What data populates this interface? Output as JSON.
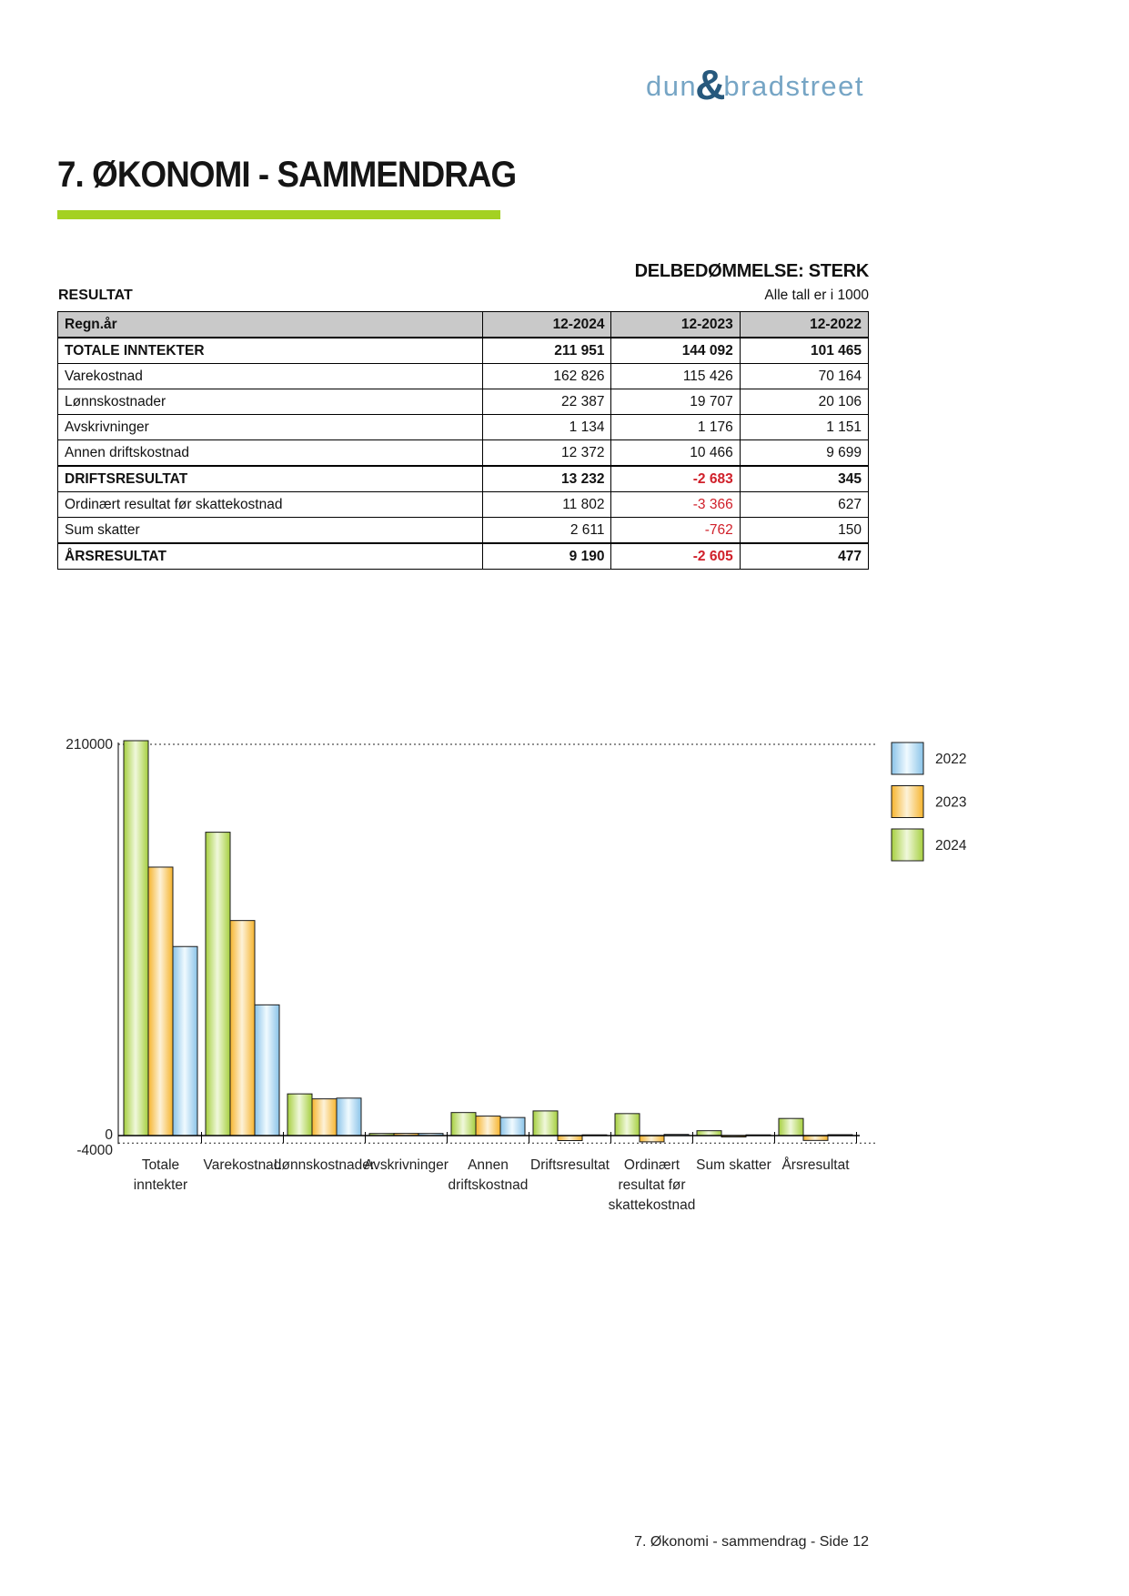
{
  "logo": {
    "word1": "dun",
    "ampersand": "&",
    "word2": "bradstreet"
  },
  "header": {
    "title": "7. ØKONOMI - SAMMENDRAG"
  },
  "assessment": {
    "label": "DELBEDØMMELSE: STERK"
  },
  "result_section": {
    "label": "RESULTAT",
    "units_note": "Alle tall er i 1000"
  },
  "table": {
    "columns": [
      "Regn.år",
      "12-2024",
      "12-2023",
      "12-2022"
    ],
    "rows": [
      {
        "label": "TOTALE INNTEKTER",
        "values": [
          "211 951",
          "144 092",
          "101 465"
        ],
        "emphasis": true
      },
      {
        "label": "Varekostnad",
        "values": [
          "162 826",
          "115 426",
          "70 164"
        ],
        "emphasis": false
      },
      {
        "label": "Lønnskostnader",
        "values": [
          "22 387",
          "19 707",
          "20 106"
        ],
        "emphasis": false
      },
      {
        "label": "Avskrivninger",
        "values": [
          "1 134",
          "1 176",
          "1 151"
        ],
        "emphasis": false
      },
      {
        "label": "Annen driftskostnad",
        "values": [
          "12 372",
          "10 466",
          "9 699"
        ],
        "emphasis": false
      },
      {
        "label": "DRIFTSRESULTAT",
        "values": [
          "13 232",
          "-2 683",
          "345"
        ],
        "emphasis": true
      },
      {
        "label": "Ordinært resultat før skattekostnad",
        "values": [
          "11 802",
          "-3 366",
          "627"
        ],
        "emphasis": false
      },
      {
        "label": "Sum skatter",
        "values": [
          "2 611",
          "-762",
          "150"
        ],
        "emphasis": false
      },
      {
        "label": "ÅRSRESULTAT",
        "values": [
          "9 190",
          "-2 605",
          "477"
        ],
        "emphasis": true
      }
    ]
  },
  "chart_data": {
    "type": "bar",
    "title": "",
    "xlabel": "",
    "ylabel": "",
    "categories": [
      "Totale inntekter",
      "Varekostnad",
      "Lønnskostnader",
      "Avskrivninger",
      "Annen driftskostnad",
      "Driftsresultat",
      "Ordinært resultat før skattekostnad",
      "Sum skatter",
      "Årsresultat"
    ],
    "category_label_lines": [
      [
        "Totale",
        "inntekter"
      ],
      [
        "Varekostnad"
      ],
      [
        "Lønnskostnader"
      ],
      [
        "Avskrivninger"
      ],
      [
        "Annen",
        "driftskostnad"
      ],
      [
        "Driftsresultat"
      ],
      [
        "Ordinært",
        "resultat før",
        "skattekostnad"
      ],
      [
        "Sum skatter"
      ],
      [
        "Årsresultat"
      ]
    ],
    "series": [
      {
        "name": "2022",
        "values": [
          101465,
          70164,
          20106,
          1151,
          9699,
          345,
          627,
          150,
          477
        ],
        "color": "#8AC3E8",
        "color_center": "#F0FAFF"
      },
      {
        "name": "2023",
        "values": [
          144092,
          115426,
          19707,
          1176,
          10466,
          -2683,
          -3366,
          -762,
          -2605
        ],
        "color": "#F6B42D",
        "color_center": "#FDF2D9"
      },
      {
        "name": "2024",
        "values": [
          211951,
          162826,
          22387,
          1134,
          12372,
          13232,
          11802,
          2611,
          9190
        ],
        "color": "#A6CF3F",
        "color_center": "#F0F8DC"
      }
    ],
    "bar_order": [
      "2024",
      "2023",
      "2022"
    ],
    "ylim": [
      -4000,
      210000
    ],
    "yticks": [
      {
        "value": 210000,
        "label": "210000"
      },
      {
        "value": 0,
        "label": "0"
      },
      {
        "value": -4000,
        "label": "-4000"
      }
    ],
    "legend": {
      "position": "top-right",
      "entries": [
        "2022",
        "2023",
        "2024"
      ]
    },
    "grid": "dotted-lines-at-ymax-and-ymin"
  },
  "footer": {
    "text": "7. Økonomi - sammendrag - Side 12"
  },
  "colors": {
    "accent_green": "#A4D122",
    "table_header_bg": "#C9C9C9",
    "negative_red": "#D0202A",
    "logo_blue": "#76A5C5",
    "logo_dark": "#27597D",
    "bar_stroke": "#1a1a1a"
  }
}
